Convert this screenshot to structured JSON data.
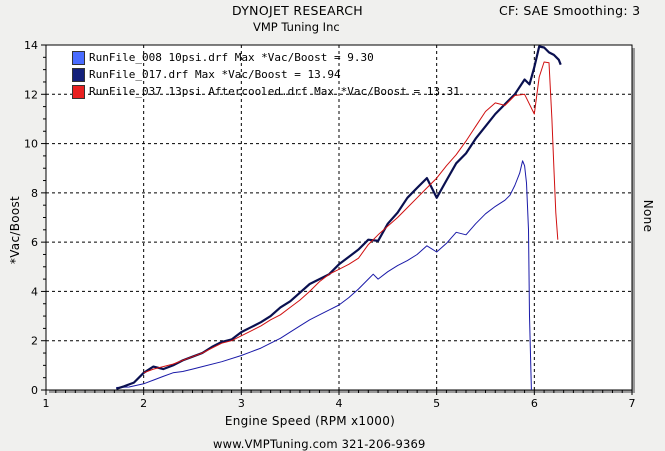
{
  "header": {
    "title": "DYNOJET RESEARCH",
    "subtitle": "VMP Tuning Inc",
    "correction": "CF: SAE  Smoothing: 3"
  },
  "footer": "www.VMPTuning.com   321-206-9369",
  "colors": {
    "background": "#f0f0ee",
    "plot_bg": "#ffffff",
    "grid": "#000000"
  },
  "chart_data": {
    "type": "line",
    "title": "DYNOJET RESEARCH",
    "subtitle": "VMP Tuning Inc",
    "xlabel": "Engine Speed (RPM x1000)",
    "ylabel": "*Vac/Boost",
    "y2label": "None",
    "xlim": [
      1,
      7
    ],
    "ylim": [
      0,
      14
    ],
    "xticks": [
      1,
      2,
      3,
      4,
      5,
      6,
      7
    ],
    "yticks": [
      0,
      2,
      4,
      6,
      8,
      10,
      12,
      14
    ],
    "grid": true,
    "legend_position": "top-left",
    "series": [
      {
        "name": "RunFile_008 10psi.drf Max *Vac/Boost = 9.30",
        "color": "#1a1aa8",
        "swatch": "#4a6cff",
        "width": 1,
        "x": [
          1.72,
          1.85,
          2.0,
          2.1,
          2.2,
          2.3,
          2.4,
          2.5,
          2.6,
          2.8,
          3.0,
          3.1,
          3.2,
          3.3,
          3.4,
          3.5,
          3.6,
          3.7,
          3.8,
          3.9,
          4.0,
          4.1,
          4.2,
          4.3,
          4.35,
          4.4,
          4.5,
          4.6,
          4.7,
          4.8,
          4.9,
          5.0,
          5.1,
          5.2,
          5.3,
          5.4,
          5.5,
          5.6,
          5.7,
          5.75,
          5.8,
          5.85,
          5.88,
          5.9,
          5.92,
          5.94,
          5.95,
          5.97
        ],
        "y": [
          0.1,
          0.12,
          0.25,
          0.4,
          0.55,
          0.7,
          0.75,
          0.85,
          0.95,
          1.15,
          1.4,
          1.55,
          1.7,
          1.9,
          2.1,
          2.35,
          2.6,
          2.85,
          3.05,
          3.25,
          3.45,
          3.75,
          4.1,
          4.5,
          4.7,
          4.5,
          4.8,
          5.05,
          5.25,
          5.5,
          5.85,
          5.6,
          5.95,
          6.4,
          6.3,
          6.75,
          7.15,
          7.45,
          7.7,
          7.9,
          8.3,
          8.8,
          9.3,
          9.1,
          8.4,
          6.5,
          3.0,
          0.0
        ]
      },
      {
        "name": "RunFile_017.drf Max *Vac/Boost = 13.94",
        "color": "#0a1050",
        "swatch": "#13207a",
        "width": 2.2,
        "x": [
          1.72,
          1.8,
          1.9,
          2.0,
          2.1,
          2.2,
          2.3,
          2.4,
          2.5,
          2.6,
          2.7,
          2.8,
          2.9,
          3.0,
          3.1,
          3.2,
          3.3,
          3.4,
          3.5,
          3.6,
          3.7,
          3.8,
          3.9,
          4.0,
          4.1,
          4.2,
          4.3,
          4.4,
          4.5,
          4.6,
          4.7,
          4.8,
          4.9,
          5.0,
          5.1,
          5.2,
          5.3,
          5.4,
          5.5,
          5.6,
          5.7,
          5.8,
          5.9,
          5.95,
          6.0,
          6.05,
          6.1,
          6.15,
          6.2,
          6.25,
          6.27
        ],
        "y": [
          0.05,
          0.15,
          0.3,
          0.7,
          0.95,
          0.85,
          1.0,
          1.2,
          1.35,
          1.5,
          1.75,
          1.95,
          2.05,
          2.35,
          2.55,
          2.75,
          3.0,
          3.35,
          3.6,
          3.95,
          4.3,
          4.5,
          4.7,
          5.1,
          5.4,
          5.7,
          6.1,
          6.05,
          6.75,
          7.2,
          7.8,
          8.2,
          8.6,
          7.8,
          8.5,
          9.2,
          9.6,
          10.2,
          10.7,
          11.2,
          11.6,
          12.0,
          12.6,
          12.4,
          13.1,
          13.94,
          13.9,
          13.7,
          13.6,
          13.4,
          13.2
        ]
      },
      {
        "name": "RunFile_037 13psi Aftercooled.drf Max *Vac/Boost = 13.31",
        "color": "#d01010",
        "swatch": "#e82020",
        "width": 1,
        "x": [
          2.0,
          2.1,
          2.2,
          2.3,
          2.4,
          2.5,
          2.6,
          2.7,
          2.8,
          2.9,
          3.0,
          3.1,
          3.2,
          3.3,
          3.4,
          3.5,
          3.6,
          3.7,
          3.8,
          3.9,
          4.0,
          4.1,
          4.2,
          4.3,
          4.4,
          4.5,
          4.6,
          4.7,
          4.8,
          4.9,
          5.0,
          5.1,
          5.2,
          5.3,
          5.4,
          5.5,
          5.6,
          5.7,
          5.8,
          5.9,
          6.0,
          6.05,
          6.1,
          6.15,
          6.18,
          6.2,
          6.22,
          6.24
        ],
        "y": [
          0.7,
          0.85,
          0.95,
          1.05,
          1.2,
          1.35,
          1.5,
          1.7,
          1.9,
          2.0,
          2.2,
          2.4,
          2.6,
          2.85,
          3.05,
          3.35,
          3.65,
          4.0,
          4.4,
          4.7,
          4.9,
          5.1,
          5.35,
          5.9,
          6.3,
          6.65,
          7.0,
          7.4,
          7.8,
          8.2,
          8.6,
          9.1,
          9.55,
          10.1,
          10.7,
          11.3,
          11.65,
          11.55,
          11.95,
          12.0,
          11.2,
          12.7,
          13.31,
          13.28,
          11.0,
          9.0,
          7.2,
          6.1
        ]
      }
    ]
  }
}
